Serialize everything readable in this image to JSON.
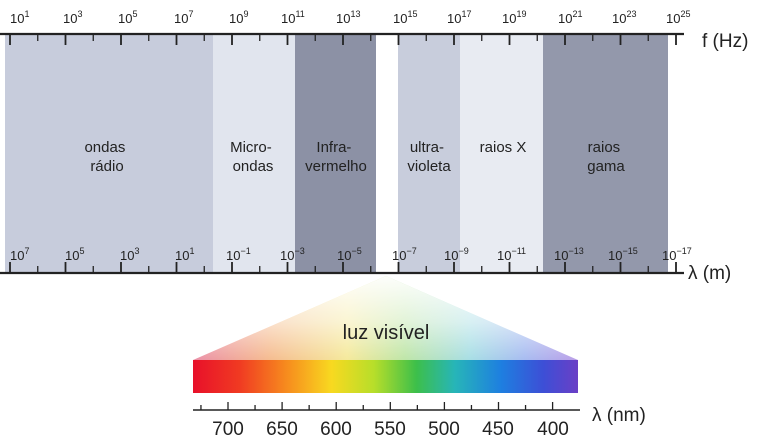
{
  "spectrum": {
    "frequency_axis": {
      "unit_label": "f (Hz)",
      "ticks": [
        {
          "base": "10",
          "exp": "1"
        },
        {
          "base": "10",
          "exp": "3"
        },
        {
          "base": "10",
          "exp": "5"
        },
        {
          "base": "10",
          "exp": "7"
        },
        {
          "base": "10",
          "exp": "9"
        },
        {
          "base": "10",
          "exp": "11"
        },
        {
          "base": "10",
          "exp": "13"
        },
        {
          "base": "10",
          "exp": "15"
        },
        {
          "base": "10",
          "exp": "17"
        },
        {
          "base": "10",
          "exp": "19"
        },
        {
          "base": "10",
          "exp": "21"
        },
        {
          "base": "10",
          "exp": "23"
        },
        {
          "base": "10",
          "exp": "25"
        }
      ]
    },
    "wavelength_axis": {
      "unit_label": "λ (m)",
      "ticks": [
        {
          "base": "10",
          "exp": "7"
        },
        {
          "base": "10",
          "exp": "5"
        },
        {
          "base": "10",
          "exp": "3"
        },
        {
          "base": "10",
          "exp": "1"
        },
        {
          "base": "10",
          "exp": "−1"
        },
        {
          "base": "10",
          "exp": "−3"
        },
        {
          "base": "10",
          "exp": "−5"
        },
        {
          "base": "10",
          "exp": "−7"
        },
        {
          "base": "10",
          "exp": "−9"
        },
        {
          "base": "10",
          "exp": "−11"
        },
        {
          "base": "10",
          "exp": "−13"
        },
        {
          "base": "10",
          "exp": "−15"
        },
        {
          "base": "10",
          "exp": "−17"
        }
      ]
    },
    "bands": [
      {
        "key": "radio",
        "lines": [
          "ondas",
          "rádio"
        ],
        "color": "#c7ccdc"
      },
      {
        "key": "microwave",
        "lines": [
          "Micro-",
          "ondas"
        ],
        "color": "#e1e5ee"
      },
      {
        "key": "infrared",
        "lines": [
          "Infra-",
          "vermelho"
        ],
        "color": "#8c91a5"
      },
      {
        "key": "ultraviolet",
        "lines": [
          "ultra-",
          "violeta"
        ],
        "color": "#c8cddc"
      },
      {
        "key": "xray",
        "lines": [
          "raios X"
        ],
        "color": "#e8ebf2"
      },
      {
        "key": "gamma",
        "lines": [
          "raios",
          "gama"
        ],
        "color": "#9398ab"
      }
    ]
  },
  "visible": {
    "title": "luz visível",
    "nm_unit_label": "λ (nm)",
    "nm_ticks": [
      "700",
      "650",
      "600",
      "550",
      "500",
      "450",
      "400"
    ]
  }
}
